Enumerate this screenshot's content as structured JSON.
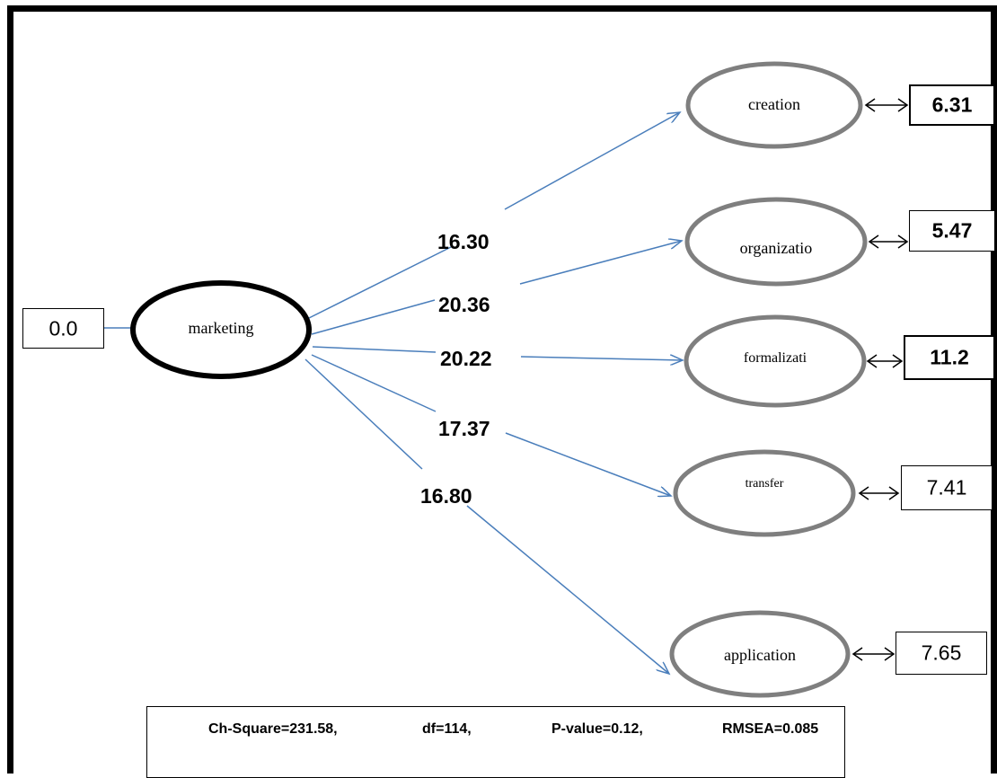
{
  "source_node": {
    "label": "marketing",
    "error_value": "0.0"
  },
  "target_nodes": [
    {
      "label": "creation",
      "error_value": "6.31"
    },
    {
      "label": "organizatio",
      "error_value": "5.47"
    },
    {
      "label": "formalizati",
      "error_value": "11.2"
    },
    {
      "label": "transfer",
      "error_value": "7.41"
    },
    {
      "label": "application",
      "error_value": "7.65"
    }
  ],
  "path_coefficients": [
    "16.30",
    "20.36",
    "20.22",
    "17.37",
    "16.80"
  ],
  "fit_statistics": {
    "chi_square": "Ch-Square=231.58,",
    "df": "df=114,",
    "p_value": "P-value=0.12,",
    "rmsea": "RMSEA=0.085"
  },
  "colors": {
    "arrow": "#4A7EBB",
    "node_outline": "#7F7F7F",
    "source_outline": "#000000"
  }
}
